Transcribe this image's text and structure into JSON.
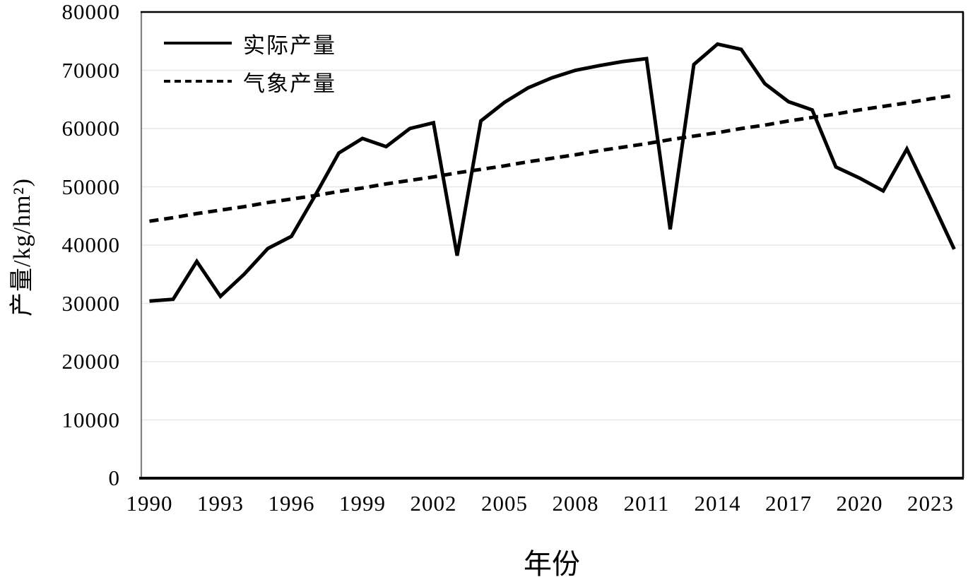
{
  "colors": {
    "line": "#000000",
    "grid": "#e7e7e7",
    "axis_left": "#808080",
    "border": "#000000",
    "background": "#ffffff"
  },
  "chart_data": {
    "type": "line",
    "xlabel": "年份",
    "ylabel": "产量/kg/hm²)",
    "x": [
      1990,
      1991,
      1992,
      1993,
      1994,
      1995,
      1996,
      1997,
      1998,
      1999,
      2000,
      2001,
      2002,
      2003,
      2004,
      2005,
      2006,
      2007,
      2008,
      2009,
      2010,
      2011,
      2012,
      2013,
      2014,
      2015,
      2016,
      2017,
      2018,
      2019,
      2020,
      2021,
      2022,
      2023,
      2024
    ],
    "series": [
      {
        "name": "实际产量",
        "style": "solid",
        "values": [
          30400,
          30700,
          37200,
          31200,
          35000,
          39400,
          41500,
          48500,
          55800,
          58300,
          56900,
          60000,
          61000,
          38200,
          61300,
          64500,
          67000,
          68700,
          70000,
          70800,
          71500,
          72000,
          42700,
          71000,
          74500,
          73600,
          67700,
          64600,
          63200,
          53400,
          51500,
          49300,
          56500,
          48000,
          39300
        ]
      },
      {
        "name": "气象产量",
        "style": "dashed",
        "values": [
          44100,
          44700,
          45400,
          46000,
          46600,
          47300,
          47900,
          48500,
          49200,
          49800,
          50500,
          51100,
          51700,
          52400,
          53000,
          53600,
          54300,
          54900,
          55500,
          56200,
          56800,
          57400,
          58100,
          58700,
          59300,
          60000,
          60600,
          61300,
          61900,
          62500,
          63200,
          63800,
          64400,
          65100,
          65700
        ]
      }
    ],
    "xlim": [
      1990,
      2024
    ],
    "ylim": [
      0,
      80000
    ],
    "x_ticks": [
      1990,
      1993,
      1996,
      1999,
      2002,
      2005,
      2008,
      2011,
      2014,
      2017,
      2020,
      2023
    ],
    "y_ticks": [
      0,
      10000,
      20000,
      30000,
      40000,
      50000,
      60000,
      70000,
      80000
    ],
    "grid": "horizontal",
    "legend_position": "top-left-inside"
  }
}
